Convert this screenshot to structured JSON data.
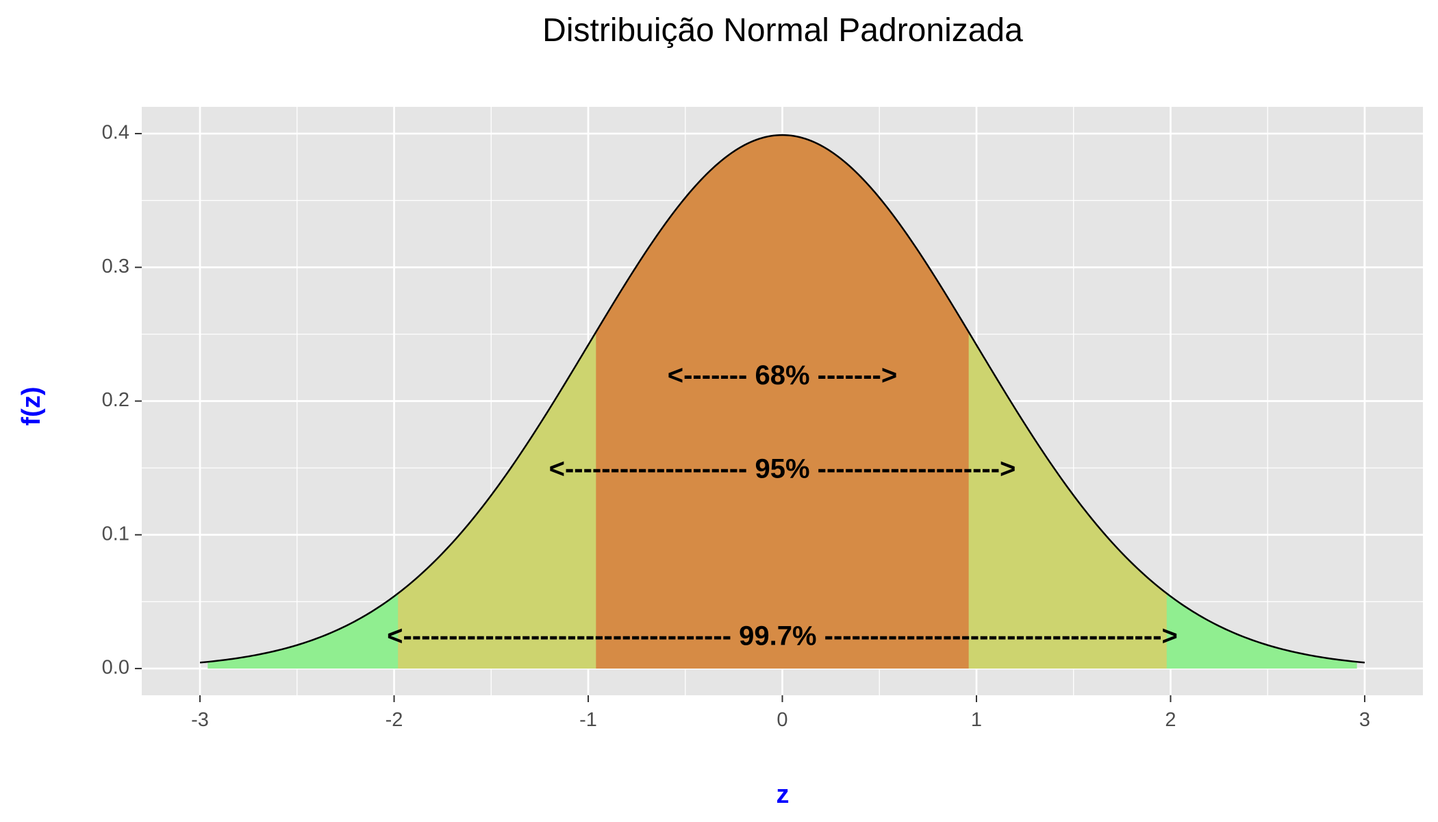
{
  "chart_data": {
    "type": "area",
    "title": "Distribuição Normal Padronizada",
    "xlabel": "z",
    "ylabel": "f(z)",
    "xlim": [
      -3.3,
      3.3
    ],
    "ylim": [
      -0.02,
      0.42
    ],
    "x_ticks": [
      -3,
      -2,
      -1,
      0,
      1,
      2,
      3
    ],
    "x_tick_labels": [
      "-3",
      "-2",
      "-1",
      "0",
      "1",
      "2",
      "3"
    ],
    "y_ticks": [
      0.0,
      0.1,
      0.2,
      0.3,
      0.4
    ],
    "y_tick_labels": [
      "0.0",
      "0.1",
      "0.2",
      "0.3",
      "0.4"
    ],
    "grid": true,
    "curve": {
      "distribution": "standard normal",
      "x_range": [
        -3,
        3
      ],
      "peak": 0.3989
    },
    "regions": [
      {
        "from": -2.96,
        "to": 2.96,
        "color": "#90ee90"
      },
      {
        "from": -1.98,
        "to": 1.98,
        "color": "#cdd46f"
      },
      {
        "from": -0.96,
        "to": 0.96,
        "color": "#d68b45"
      }
    ],
    "annotations": [
      {
        "text": "<------- 68% ------->",
        "x": 0,
        "y": 0.218
      },
      {
        "text": "<-------------------- 95% -------------------->",
        "x": 0,
        "y": 0.148
      },
      {
        "text": "<------------------------------------ 99.7% ------------------------------------->",
        "x": 0,
        "y": 0.023
      }
    ],
    "colors": {
      "panel": "#e5e5e5",
      "grid": "#ffffff",
      "curve": "#000000",
      "axis_title": "#0000ff"
    }
  }
}
